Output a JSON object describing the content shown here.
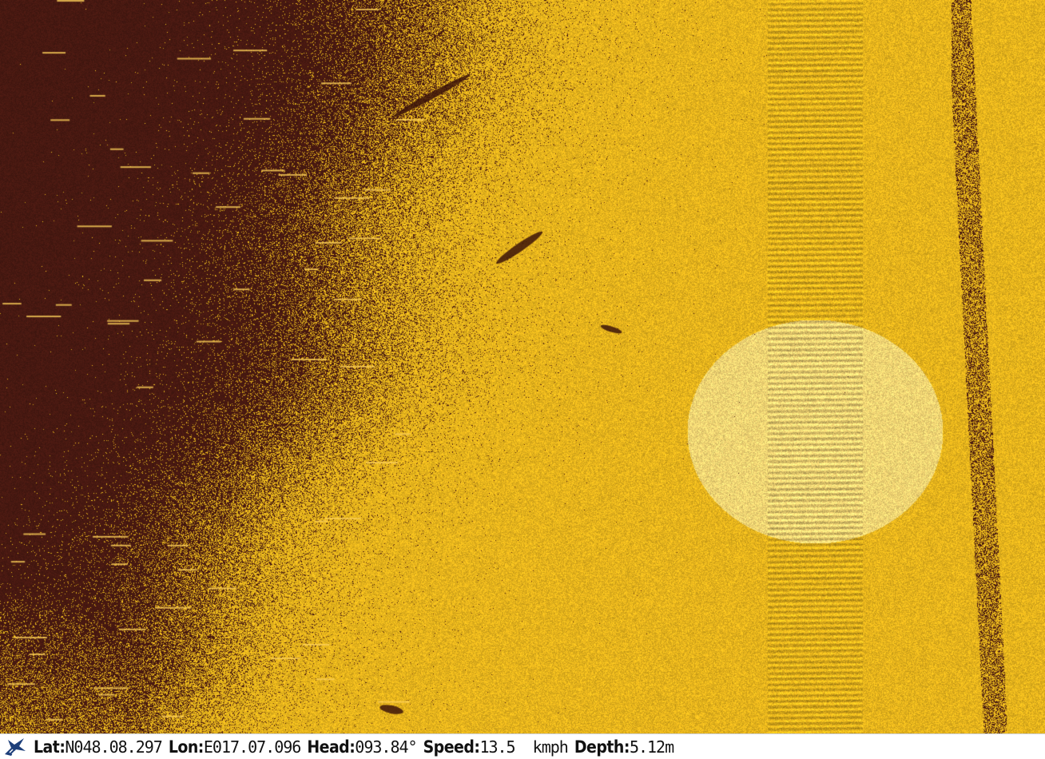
{
  "colors": {
    "dark": "#4b1a12",
    "bright": "#f2bd1e",
    "highlight": "#ffe07a"
  },
  "status": {
    "logo_icon": "shark-icon",
    "lat_label": "Lat:",
    "lat_value": "N048.08.297",
    "lon_label": "Lon:",
    "lon_value": "E017.07.096",
    "head_label": "Head:",
    "head_value": "093.84°",
    "speed_label": "Speed:",
    "speed_value": "13.5  kmph",
    "depth_label": "Depth:",
    "depth_value": "5.12m"
  }
}
